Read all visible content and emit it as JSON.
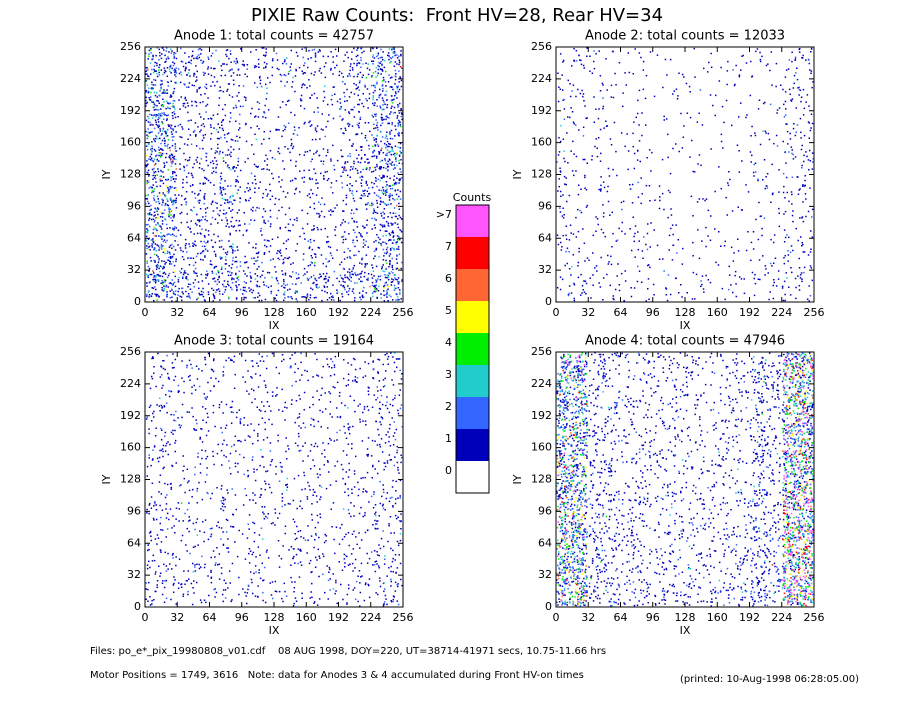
{
  "title": "PIXIE Raw Counts:  Front HV=28, Rear HV=34",
  "colorbar": {
    "title": "Counts",
    "levels": [
      ">7",
      7,
      6,
      5,
      4,
      3,
      2,
      1,
      0
    ],
    "colors": [
      "#ff55ff",
      "#ff0000",
      "#ff6633",
      "#ffff00",
      "#00ee00",
      "#22cccc",
      "#3366ff",
      "#0000bb",
      "#ffffff"
    ]
  },
  "chart_data": [
    {
      "type": "heatmap",
      "title": "Anode 1: total counts = 42757",
      "xlabel": "IX",
      "ylabel": "IY",
      "xlim": [
        0,
        256
      ],
      "ylim": [
        0,
        256
      ],
      "xticks": [
        0,
        32,
        64,
        96,
        128,
        160,
        192,
        224,
        256
      ],
      "yticks": [
        0,
        32,
        64,
        96,
        128,
        160,
        192,
        224,
        256
      ],
      "density": [
        [
          1.4,
          0.8,
          0.6,
          0.5,
          0.5,
          0.5,
          0.7,
          1.3
        ],
        [
          1.5,
          0.6,
          0.4,
          0.3,
          0.3,
          0.3,
          0.6,
          1.2
        ],
        [
          1.6,
          0.5,
          0.6,
          0.3,
          0.3,
          0.3,
          0.5,
          1.2
        ],
        [
          1.6,
          0.5,
          0.7,
          0.3,
          0.3,
          0.4,
          0.8,
          1.5
        ],
        [
          1.6,
          0.6,
          0.8,
          0.4,
          0.3,
          0.4,
          0.7,
          1.3
        ],
        [
          1.5,
          0.6,
          0.6,
          0.4,
          0.3,
          0.4,
          0.5,
          1.0
        ],
        [
          1.5,
          0.7,
          0.8,
          0.5,
          0.4,
          0.5,
          0.6,
          1.1
        ],
        [
          1.6,
          1.0,
          1.0,
          0.8,
          0.8,
          0.9,
          1.0,
          1.4
        ]
      ]
    },
    {
      "type": "heatmap",
      "title": "Anode 2: total counts = 12033",
      "xlabel": "IX",
      "ylabel": "IY",
      "xlim": [
        0,
        256
      ],
      "ylim": [
        0,
        256
      ],
      "xticks": [
        0,
        32,
        64,
        96,
        128,
        160,
        192,
        224,
        256
      ],
      "yticks": [
        0,
        32,
        64,
        96,
        128,
        160,
        192,
        224,
        256
      ],
      "density": [
        [
          0.3,
          0.2,
          0.15,
          0.1,
          0.1,
          0.15,
          0.2,
          0.4
        ],
        [
          0.3,
          0.2,
          0.1,
          0.1,
          0.1,
          0.1,
          0.15,
          0.4
        ],
        [
          0.25,
          0.15,
          0.15,
          0.1,
          0.1,
          0.1,
          0.15,
          0.35
        ],
        [
          0.25,
          0.15,
          0.2,
          0.1,
          0.1,
          0.1,
          0.2,
          0.4
        ],
        [
          0.3,
          0.2,
          0.2,
          0.1,
          0.1,
          0.1,
          0.2,
          0.35
        ],
        [
          0.3,
          0.2,
          0.2,
          0.15,
          0.1,
          0.1,
          0.15,
          0.3
        ],
        [
          0.3,
          0.2,
          0.2,
          0.15,
          0.1,
          0.15,
          0.2,
          0.35
        ],
        [
          0.35,
          0.25,
          0.2,
          0.2,
          0.2,
          0.2,
          0.25,
          0.4
        ]
      ]
    },
    {
      "type": "heatmap",
      "title": "Anode 3: total counts = 19164",
      "xlabel": "IX",
      "ylabel": "IY",
      "xlim": [
        0,
        256
      ],
      "ylim": [
        0,
        256
      ],
      "xticks": [
        0,
        32,
        64,
        96,
        128,
        160,
        192,
        224,
        256
      ],
      "yticks": [
        0,
        32,
        64,
        96,
        128,
        160,
        192,
        224,
        256
      ],
      "density": [
        [
          0.4,
          0.3,
          0.3,
          0.3,
          0.3,
          0.3,
          0.3,
          0.5
        ],
        [
          0.4,
          0.3,
          0.25,
          0.3,
          0.25,
          0.25,
          0.3,
          0.45
        ],
        [
          0.4,
          0.3,
          0.3,
          0.3,
          0.25,
          0.3,
          0.3,
          0.45
        ],
        [
          0.35,
          0.25,
          0.25,
          0.3,
          0.25,
          0.25,
          0.3,
          0.4
        ],
        [
          0.4,
          0.3,
          0.3,
          0.3,
          0.3,
          0.3,
          0.3,
          0.45
        ],
        [
          0.4,
          0.3,
          0.3,
          0.3,
          0.25,
          0.3,
          0.3,
          0.45
        ],
        [
          0.45,
          0.3,
          0.3,
          0.3,
          0.3,
          0.3,
          0.35,
          0.5
        ],
        [
          0.45,
          0.35,
          0.3,
          0.35,
          0.3,
          0.3,
          0.35,
          0.5
        ]
      ]
    },
    {
      "type": "heatmap",
      "title": "Anode 4: total counts = 47946",
      "xlabel": "IX",
      "ylabel": "IY",
      "xlim": [
        0,
        256
      ],
      "ylim": [
        0,
        256
      ],
      "xticks": [
        0,
        32,
        64,
        96,
        128,
        160,
        192,
        224,
        256
      ],
      "yticks": [
        0,
        32,
        64,
        96,
        128,
        160,
        192,
        224,
        256
      ],
      "density": [
        [
          2.2,
          0.7,
          0.4,
          0.4,
          0.4,
          0.4,
          0.8,
          2.6
        ],
        [
          2.0,
          0.6,
          0.4,
          0.4,
          0.3,
          0.4,
          0.7,
          2.5
        ],
        [
          2.0,
          0.6,
          0.4,
          0.4,
          0.3,
          0.4,
          0.7,
          2.4
        ],
        [
          2.1,
          0.6,
          0.4,
          0.4,
          0.3,
          0.4,
          0.7,
          2.5
        ],
        [
          2.2,
          0.6,
          0.5,
          0.4,
          0.4,
          0.4,
          0.7,
          2.6
        ],
        [
          2.2,
          0.7,
          0.5,
          0.4,
          0.4,
          0.4,
          0.8,
          2.6
        ],
        [
          2.3,
          0.7,
          0.5,
          0.5,
          0.4,
          0.5,
          0.8,
          2.7
        ],
        [
          2.3,
          0.8,
          0.5,
          0.5,
          0.5,
          0.5,
          0.9,
          2.7
        ]
      ]
    }
  ],
  "footer": {
    "files": "Files: po_e*_pix_19980808_v01.cdf    08 AUG 1998, DOY=220, UT=38714-41971 secs, 10.75-11.66 hrs",
    "motor": "Motor Positions = 1749, 3616   Note: data for Anodes 3 & 4 accumulated during Front HV-on times",
    "printed": "(printed: 10-Aug-1998 06:28:05.00)"
  }
}
